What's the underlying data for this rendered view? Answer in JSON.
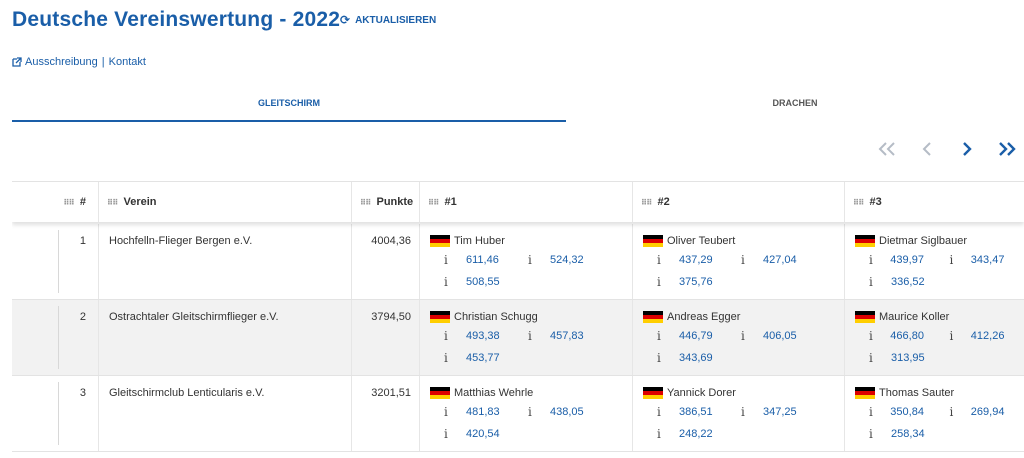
{
  "page": {
    "title": "Deutsche Vereinswertung - 2022",
    "refresh_label": "AKTUALISIEREN"
  },
  "links": {
    "ausschreibung": "Ausschreibung",
    "separator": "|",
    "kontakt": "Kontakt"
  },
  "tabs": [
    {
      "label": "GLEITSCHIRM",
      "active": true
    },
    {
      "label": "DRACHEN",
      "active": false
    }
  ],
  "pager": {
    "first": "«",
    "prev": "‹",
    "next": "›",
    "last": "»"
  },
  "columns": {
    "rank": "#",
    "club": "Verein",
    "points": "Punkte",
    "p1": "#1",
    "p2": "#2",
    "p3": "#3"
  },
  "rows": [
    {
      "rank": "1",
      "club": "Hochfelln-Flieger Bergen e.V.",
      "points": "4004,36",
      "pilots": [
        {
          "name": "Tim Huber",
          "scores": [
            "611,46",
            "524,32",
            "508,55"
          ]
        },
        {
          "name": "Oliver Teubert",
          "scores": [
            "437,29",
            "427,04",
            "375,76"
          ]
        },
        {
          "name": "Dietmar Siglbauer",
          "scores": [
            "439,97",
            "343,47",
            "336,52"
          ]
        }
      ]
    },
    {
      "rank": "2",
      "club": "Ostrachtaler Gleitschirmflieger e.V.",
      "points": "3794,50",
      "pilots": [
        {
          "name": "Christian Schugg",
          "scores": [
            "493,38",
            "457,83",
            "453,77"
          ]
        },
        {
          "name": "Andreas Egger",
          "scores": [
            "446,79",
            "406,05",
            "343,69"
          ]
        },
        {
          "name": "Maurice Koller",
          "scores": [
            "466,80",
            "412,26",
            "313,95"
          ]
        }
      ]
    },
    {
      "rank": "3",
      "club": "Gleitschirmclub Lenticularis e.V.",
      "points": "3201,51",
      "pilots": [
        {
          "name": "Matthias Wehrle",
          "scores": [
            "481,83",
            "438,05",
            "420,54"
          ]
        },
        {
          "name": "Yannick Dorer",
          "scores": [
            "386,51",
            "347,25",
            "248,22"
          ]
        },
        {
          "name": "Thomas Sauter",
          "scores": [
            "350,84",
            "269,94",
            "258,34"
          ]
        }
      ]
    }
  ],
  "info_symbol": "i",
  "colors": {
    "accent": "#1a5ea8",
    "flag": [
      "#000000",
      "#dd0000",
      "#ffce00"
    ]
  }
}
